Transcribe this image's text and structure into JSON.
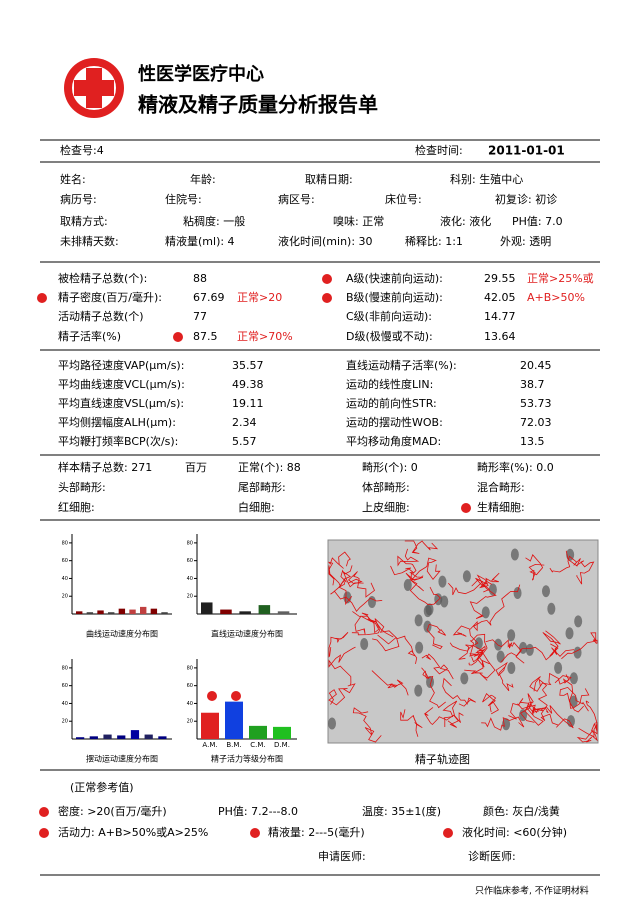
{
  "header": {
    "title1": "性医学医疗中心",
    "title2": "精液及精子质量分析报告单"
  },
  "exam": {
    "number": "检查号:4",
    "time_label": "检查时间:",
    "time": "2011-01-01"
  },
  "info": {
    "rows": [
      [
        "姓名:",
        "年龄:",
        "取精日期:",
        "科别: 生殖中心"
      ],
      [
        "病历号:",
        "住院号:",
        "病区号:",
        "床位号:",
        "初复诊: 初诊"
      ],
      [
        "取精方式:",
        "粘稠度: 一般",
        "嗅味: 正常",
        "液化: 液化",
        "PH值: 7.0"
      ],
      [
        "未排精天数:",
        "精液量(ml): 4",
        "液化时间(min): 30",
        "稀释比: 1:1",
        "外观: 透明"
      ]
    ]
  },
  "counts": {
    "left": [
      {
        "label": "被检精子总数(个):",
        "value": 88
      },
      {
        "label": "精子密度(百万/毫升):",
        "value": 67.69,
        "note": "正常>20"
      },
      {
        "label": "活动精子总数(个)",
        "value": 77
      },
      {
        "label": "精子活率(%)",
        "value": 87.5,
        "note": "正常>70%"
      }
    ],
    "right": [
      {
        "label": "A级(快速前向运动):",
        "value": 29.55,
        "note": "正常>25%或"
      },
      {
        "label": "B级(慢速前向运动):",
        "value": 42.05,
        "note": "A+B>50%"
      },
      {
        "label": "C级(非前向运动):",
        "value": 14.77
      },
      {
        "label": "D级(极慢或不动):",
        "value": 13.64
      }
    ]
  },
  "motion": {
    "left": [
      {
        "label": "平均路径速度VAP(μm/s):",
        "value": 35.57
      },
      {
        "label": "平均曲线速度VCL(μm/s):",
        "value": 49.38
      },
      {
        "label": "平均直线速度VSL(μm/s):",
        "value": 19.11
      },
      {
        "label": "平均侧摆幅度ALH(μm):",
        "value": 2.34
      },
      {
        "label": "平均鞭打频率BCP(次/s):",
        "value": 5.57
      }
    ],
    "right": [
      {
        "label": "直线运动精子活率(%):",
        "value": 20.45
      },
      {
        "label": "运动的线性度LIN:",
        "value": 38.7
      },
      {
        "label": "运动的前向性STR:",
        "value": 53.73
      },
      {
        "label": "运动的摆动性WOB:",
        "value": 72.03
      },
      {
        "label": "平均移动角度MAD:",
        "value": 13.5
      }
    ]
  },
  "morphology": {
    "rows": [
      [
        "样本精子总数: 271",
        "百万",
        "正常(个): 88",
        "畸形(个): 0",
        "畸形率(%): 0.0"
      ],
      [
        "头部畸形:",
        "尾部畸形:",
        "体部畸形:",
        "混合畸形:"
      ],
      [
        "红细胞:",
        "白细胞:",
        "上皮细胞:",
        "生精细胞:"
      ]
    ]
  },
  "charts": [
    {
      "title": "曲线运动速度分布图",
      "values": [
        3,
        2,
        4,
        2,
        6,
        5,
        8,
        6,
        2
      ],
      "colors": [
        "#800000",
        "#404040",
        "#800000",
        "#404040",
        "#800000",
        "#c04040",
        "#c04040",
        "#800000",
        "#404040"
      ],
      "ylim": [
        0,
        90
      ],
      "yticks": [
        20,
        40,
        60,
        80
      ]
    },
    {
      "title": "直线运动速度分布图",
      "values": [
        13,
        5,
        3,
        10,
        3
      ],
      "colors": [
        "#202020",
        "#800000",
        "#202020",
        "#206020",
        "#606060"
      ],
      "ylim": [
        0,
        90
      ],
      "yticks": [
        20,
        40,
        60,
        80
      ]
    },
    {
      "title": "摆动运动速度分布图",
      "values": [
        2,
        3,
        5,
        4,
        10,
        5,
        3
      ],
      "colors": [
        "#000080",
        "#000080",
        "#202060",
        "#000080",
        "#0000a0",
        "#202060",
        "#000080"
      ],
      "ylim": [
        0,
        90
      ],
      "yticks": [
        20,
        40,
        60,
        80
      ]
    },
    {
      "title": "精子活力等级分布图",
      "categories": [
        "A.M.",
        "B.M.",
        "C.M.",
        "D.M."
      ],
      "values": [
        29.55,
        42.05,
        14.77,
        13.64
      ],
      "colors": [
        "#e02020",
        "#1040e0",
        "#20a020",
        "#20c020"
      ],
      "ylim": [
        0,
        90
      ],
      "yticks": [
        20,
        40,
        60,
        80
      ]
    }
  ],
  "trajectory": {
    "caption": "精子轨迹图"
  },
  "reference": {
    "title": "(正常参考值)",
    "row1": [
      "密度: >20(百万/毫升)",
      "PH值: 7.2---8.0",
      "温度: 35±1(度)",
      "颜色: 灰白/浅黄"
    ],
    "row2": [
      "活动力: A+B>50%或A>25%",
      "精液量: 2---5(毫升)",
      "液化时间: <60(分钟)"
    ]
  },
  "signatures": {
    "applicant": "申请医师:",
    "diagnostician": "诊断医师:"
  },
  "footer": "只作临床参考, 不作证明材料"
}
